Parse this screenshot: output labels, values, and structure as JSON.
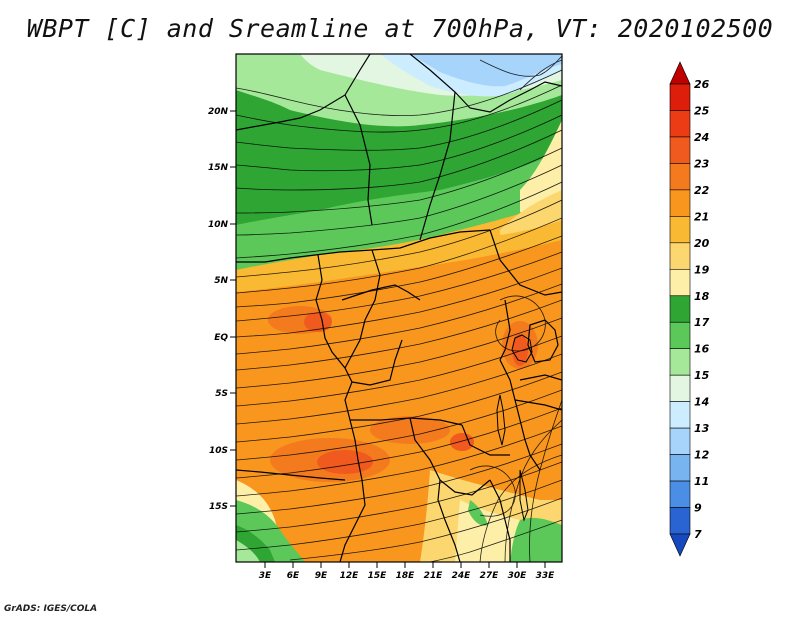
{
  "title": "WBPT [C] and Sreamline at 700hPa, VT: 2020102500",
  "credit": "GrADS: IGES/COLA",
  "map": {
    "lat_labels": [
      "20N",
      "15N",
      "10N",
      "5N",
      "EQ",
      "5S",
      "10S",
      "15S"
    ],
    "lon_labels": [
      "3E",
      "6E",
      "9E",
      "12E",
      "15E",
      "18E",
      "21E",
      "24E",
      "27E",
      "30E",
      "33E"
    ],
    "variable": "WBPT",
    "units": "C",
    "level": "700hPa",
    "valid_time": "2020102500"
  },
  "colorbar": {
    "labels": [
      "26",
      "25",
      "24",
      "23",
      "22",
      "21",
      "20",
      "19",
      "18",
      "17",
      "16",
      "15",
      "14",
      "13",
      "12",
      "11",
      "9",
      "7"
    ],
    "colors": [
      "#c00000",
      "#dc1e0a",
      "#ec3c16",
      "#f05a1e",
      "#f47a1e",
      "#f8961e",
      "#fab932",
      "#fcd66e",
      "#fdeea8",
      "#2fa534",
      "#5cc85a",
      "#a6e89a",
      "#e2f6e2",
      "#ccecff",
      "#a6d4fa",
      "#78b4f0",
      "#4a8ee6",
      "#2a64d2",
      "#1648be"
    ],
    "orientation": "vertical",
    "extend": "both"
  }
}
